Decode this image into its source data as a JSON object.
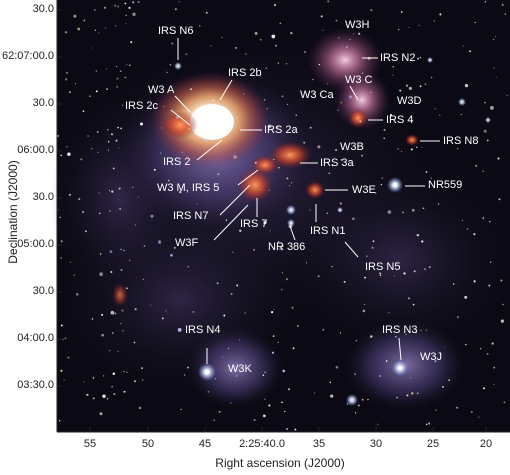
{
  "axes": {
    "xlabel": "Right ascension (J2000)",
    "ylabel": "Declination (J2000)",
    "x_ticks": [
      "55",
      "50",
      "45",
      "2:25:40.0",
      "35",
      "30",
      "25",
      "20"
    ],
    "y_ticks": [
      "30.0",
      "62:07:00.0",
      "30.0",
      "06:00.0",
      "30.0",
      "05:00.0",
      "30.0",
      "04:00.0",
      "03:30.0"
    ]
  },
  "labels": {
    "irs_n6": "IRS N6",
    "w3h": "W3H",
    "irs_n2": "IRS N2",
    "w3a": "W3 A",
    "irs2b": "IRS 2b",
    "w3c": "W3 C",
    "w3ca": "W3 Ca",
    "w3d": "W3D",
    "irs2c": "IRS 2c",
    "irs4": "IRS 4",
    "irs2a": "IRS 2a",
    "irs_n8": "IRS N8",
    "w3b": "W3B",
    "irs2": "IRS 2",
    "irs3a": "IRS 3a",
    "w3m": "W3 M, IRS 5",
    "w3e": "W3E",
    "nr559": "NR559",
    "irs_n7": "IRS N7",
    "irs7": "IRS 7",
    "irs_n1": "IRS N1",
    "w3f": "W3F",
    "nr386": "NR 386",
    "irs_n5": "IRS N5",
    "irs_n4": "IRS N4",
    "irs_n3": "IRS N3",
    "w3k": "W3K",
    "w3j": "W3J"
  },
  "colors": {
    "background": "#0b0a14",
    "nebula_violet": "#5a4a8c",
    "hot_core": "#fff6e0",
    "ionized_red": "#d2452a",
    "label_text": "#ffffff"
  }
}
